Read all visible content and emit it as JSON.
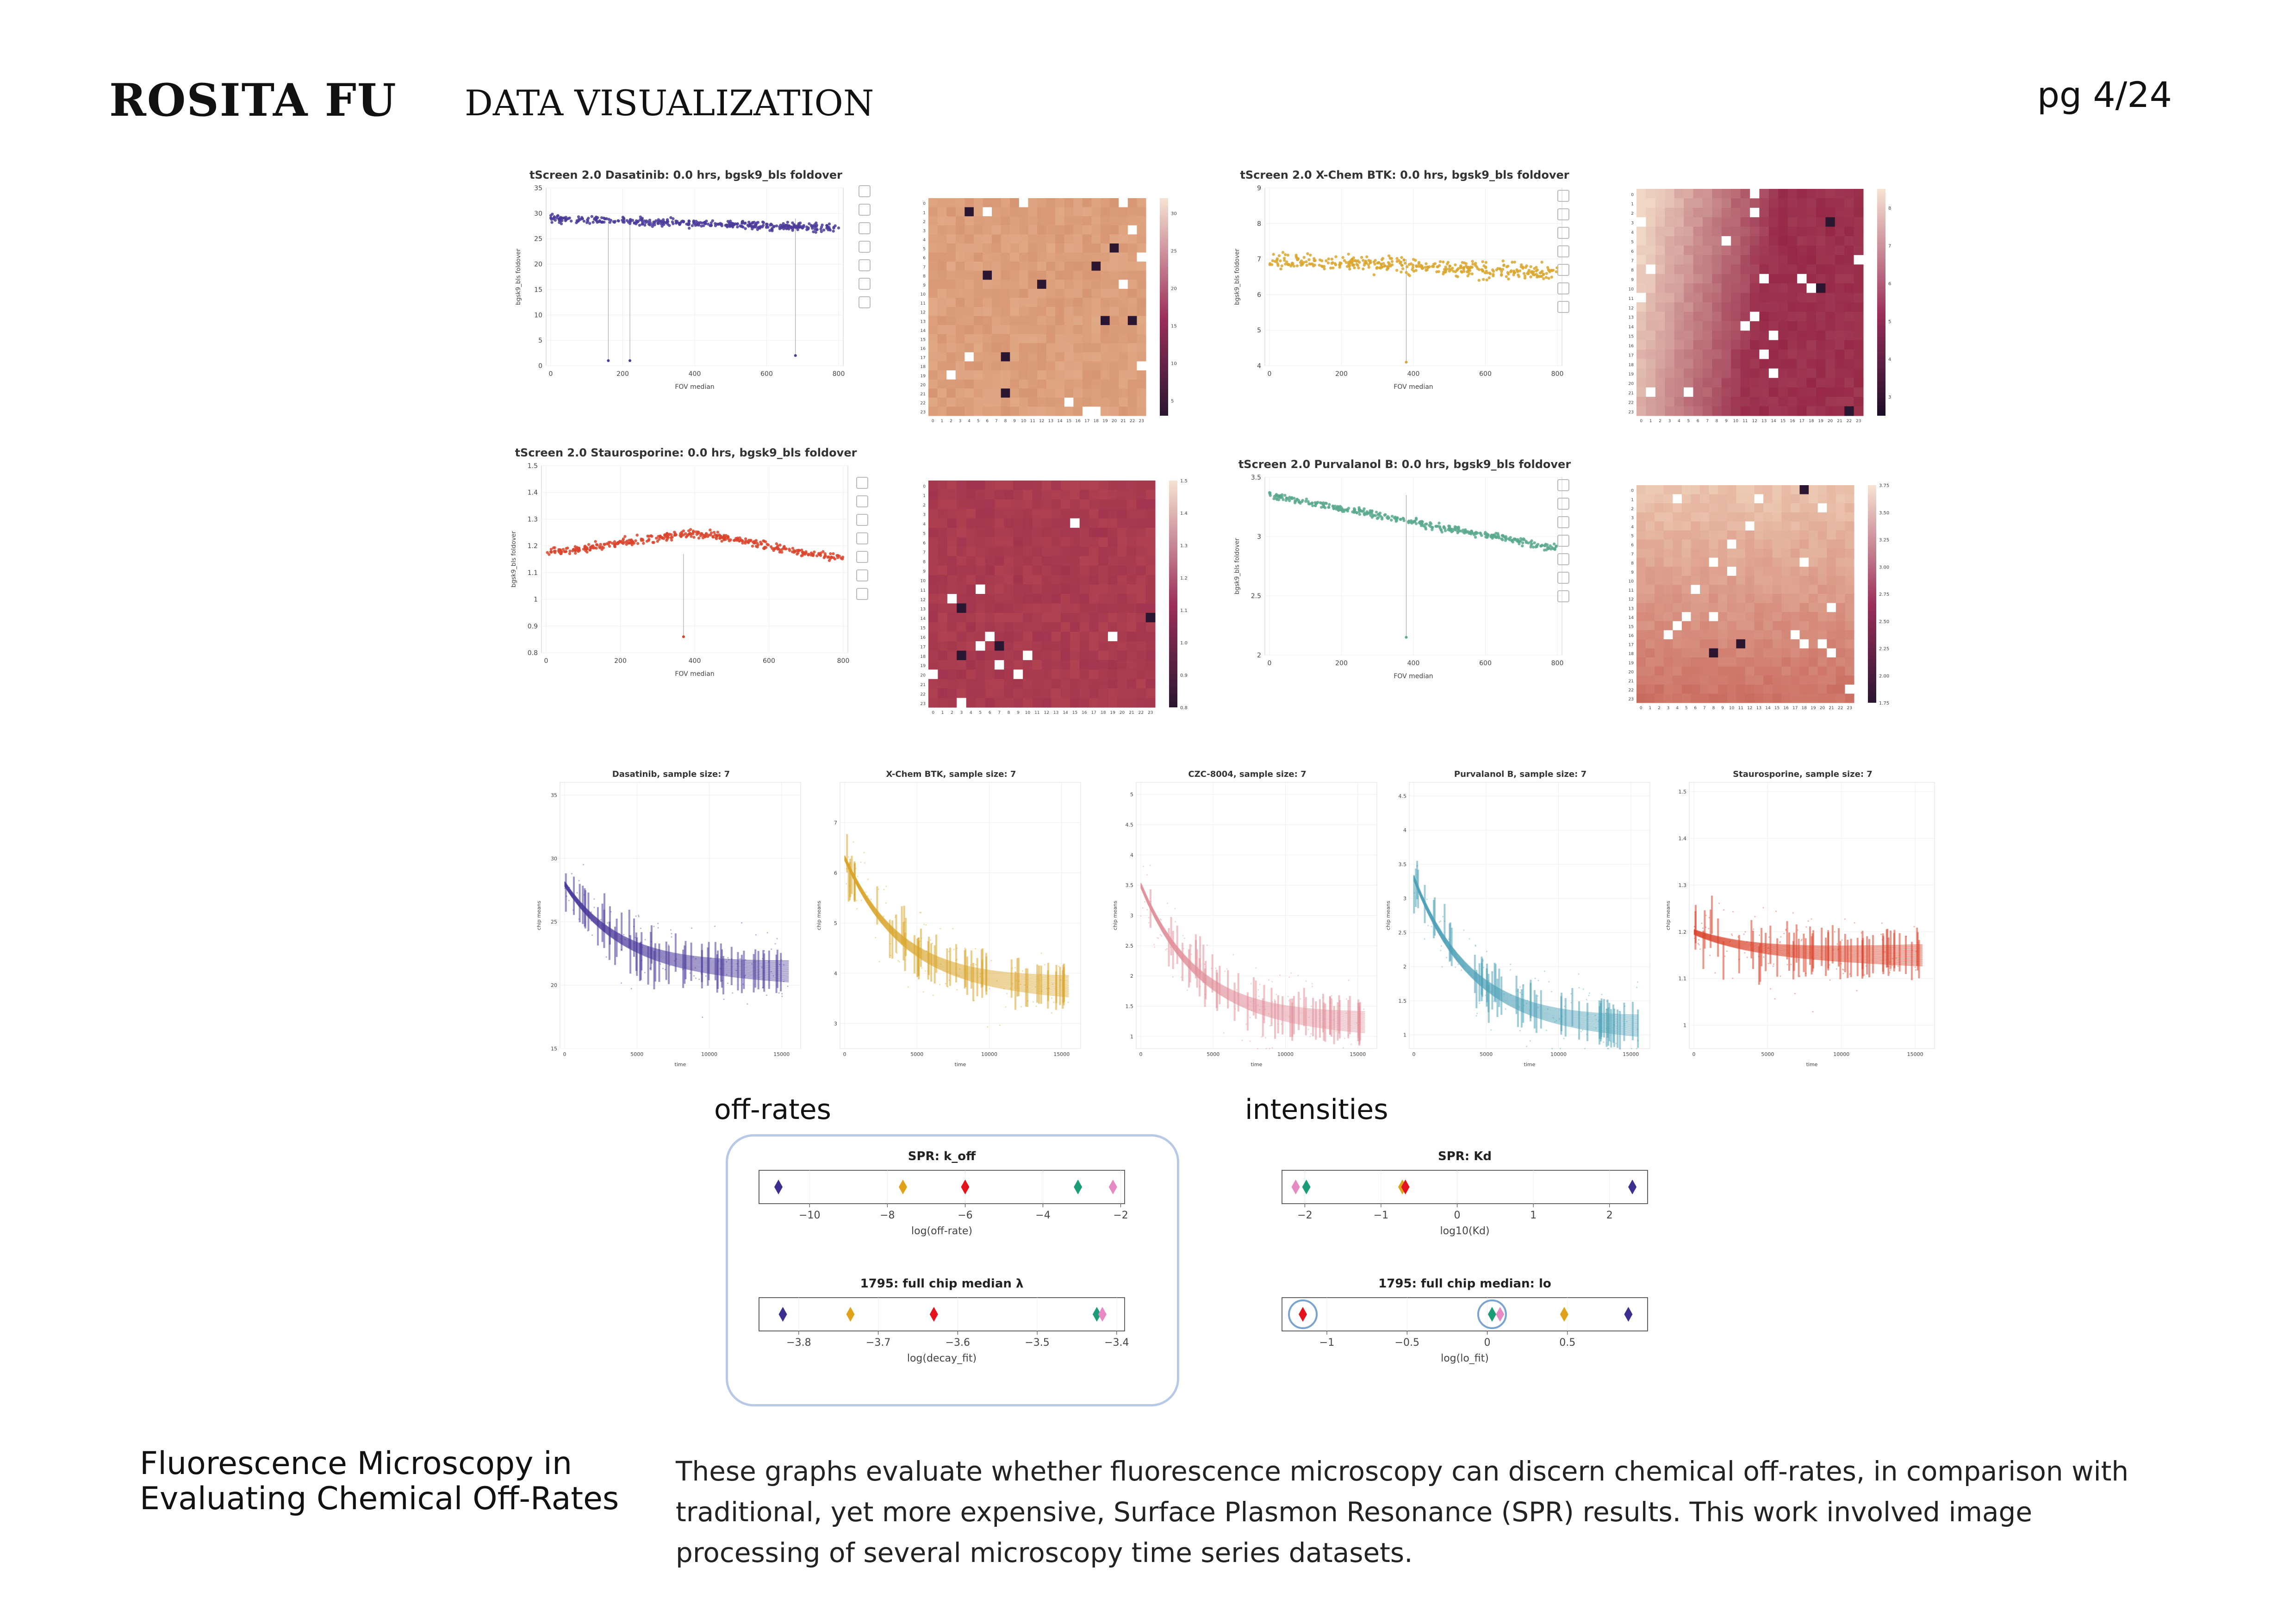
{
  "header": {
    "name": "ROSITA FU",
    "section": "DATA VISUALIZATION",
    "page": "pg 4/24"
  },
  "scatter_panels": [
    {
      "title": "tScreen 2.0 Dasatinib: 0.0 hrs, bgsk9_bls foldover",
      "color": "#4b3a9a",
      "xlabel": "FOV median",
      "ylabel": "bgsk9_bls foldover",
      "ylim": [
        0,
        35
      ],
      "yticks": [
        "0",
        "5",
        "10",
        "15",
        "20",
        "25",
        "30",
        "35"
      ],
      "xticks": [
        "0",
        "200",
        "400",
        "600",
        "800"
      ]
    },
    {
      "title": "tScreen 2.0 X-Chem BTK: 0.0 hrs, bgsk9_bls foldover",
      "color": "#d9a62e",
      "xlabel": "FOV median",
      "ylabel": "bgsk9_bls foldover",
      "ylim": [
        4,
        9
      ],
      "yticks": [
        "4",
        "5",
        "6",
        "7",
        "8",
        "9"
      ],
      "xticks": [
        "0",
        "200",
        "400",
        "600",
        "800"
      ]
    },
    {
      "title": "tScreen 2.0 Staurosporine: 0.0 hrs, bgsk9_bls foldover",
      "color": "#d9442b",
      "xlabel": "FOV median",
      "ylabel": "bgsk9_bls foldover",
      "ylim": [
        0.8,
        1.5
      ],
      "yticks": [
        "0.8",
        "0.9",
        "1",
        "1.1",
        "1.2",
        "1.3",
        "1.4",
        "1.5"
      ],
      "xticks": [
        "0",
        "200",
        "400",
        "600",
        "800"
      ]
    },
    {
      "title": "tScreen 2.0 Purvalanol B: 0.0 hrs, bgsk9_bls foldover",
      "color": "#5aa98e",
      "xlabel": "FOV median",
      "ylabel": "bgsk9_bls foldover",
      "ylim": [
        2,
        3.5
      ],
      "yticks": [
        "2",
        "2.5",
        "3",
        "3.5"
      ],
      "xticks": [
        "0",
        "200",
        "400",
        "600",
        "800"
      ]
    }
  ],
  "heatmaps": [
    {
      "colorbar_ticks": [
        "5",
        "10",
        "15",
        "20",
        "25",
        "30"
      ]
    },
    {
      "colorbar_ticks": [
        "3",
        "4",
        "5",
        "6",
        "7",
        "8"
      ]
    },
    {
      "colorbar_ticks": [
        "0.8",
        "0.9",
        "1.0",
        "1.1",
        "1.2",
        "1.3",
        "1.4",
        "1.5"
      ]
    },
    {
      "colorbar_ticks": [
        "1.75",
        "2.00",
        "2.25",
        "2.50",
        "2.75",
        "3.00",
        "3.25",
        "3.50",
        "3.75"
      ]
    }
  ],
  "decay_panels": [
    {
      "title": "Dasatinib, sample size: 7",
      "color": "#4b3a9a",
      "xlabel": "time",
      "ylabel": "chip means",
      "yticks": [
        "15",
        "20",
        "25",
        "30",
        "35"
      ],
      "xticks": [
        "0",
        "5000",
        "10000",
        "15000"
      ]
    },
    {
      "title": "X-Chem BTK, sample size: 7",
      "color": "#d9a62e",
      "xlabel": "time",
      "ylabel": "chip means",
      "yticks": [
        "3",
        "4",
        "5",
        "6",
        "7"
      ],
      "xticks": [
        "0",
        "5000",
        "10000",
        "15000"
      ]
    },
    {
      "title": "CZC-8004, sample size: 7",
      "color": "#e2919b",
      "xlabel": "time",
      "ylabel": "chip means",
      "yticks": [
        "1",
        "1.5",
        "2",
        "2.5",
        "3",
        "3.5",
        "4",
        "4.5",
        "5"
      ],
      "xticks": [
        "0",
        "5000",
        "10000",
        "15000"
      ]
    },
    {
      "title": "Purvalanol B, sample size: 7",
      "color": "#4fa2b8",
      "xlabel": "time",
      "ylabel": "chip means",
      "yticks": [
        "1",
        "1.5",
        "2",
        "2.5",
        "3",
        "3.5",
        "4",
        "4.5"
      ],
      "xticks": [
        "0",
        "5000",
        "10000",
        "15000"
      ]
    },
    {
      "title": "Staurosporine, sample size: 7",
      "color": "#d9442b",
      "xlabel": "time",
      "ylabel": "chip means",
      "yticks": [
        "1",
        "1.1",
        "1.2",
        "1.3",
        "1.4",
        "1.5"
      ],
      "xticks": [
        "0",
        "5000",
        "10000",
        "15000"
      ]
    }
  ],
  "labels": {
    "offrates": "off-rates",
    "intensities": "intensities"
  },
  "strips": [
    {
      "title": "SPR: k_off",
      "xlabel": "log(off-rate)",
      "xlim": [
        -11.3,
        -1.9
      ],
      "ticks": [
        -10,
        -8,
        -6,
        -4,
        -2
      ],
      "tick_labels": [
        "−10",
        "−8",
        "−6",
        "−4",
        "−2"
      ],
      "points": [
        {
          "x": -10.8,
          "color": "#3b2f8f"
        },
        {
          "x": -7.6,
          "color": "#e0a21b"
        },
        {
          "x": -6.0,
          "color": "#e3121b"
        },
        {
          "x": -3.1,
          "color": "#1b9e77"
        },
        {
          "x": -2.2,
          "color": "#e78ac3"
        }
      ]
    },
    {
      "title": "1795: full chip median λ",
      "xlabel": "log(decay_fit)",
      "xlim": [
        -3.85,
        -3.39
      ],
      "ticks": [
        -3.8,
        -3.7,
        -3.6,
        -3.5,
        -3.4
      ],
      "tick_labels": [
        "−3.8",
        "−3.7",
        "−3.6",
        "−3.5",
        "−3.4"
      ],
      "points": [
        {
          "x": -3.82,
          "color": "#3b2f8f"
        },
        {
          "x": -3.735,
          "color": "#e0a21b"
        },
        {
          "x": -3.63,
          "color": "#e3121b"
        },
        {
          "x": -3.425,
          "color": "#1b9e77"
        },
        {
          "x": -3.418,
          "color": "#e78ac3"
        }
      ]
    },
    {
      "title": "SPR: Kd",
      "xlabel": "log10(Kd)",
      "xlim": [
        -2.3,
        2.5
      ],
      "ticks": [
        -2,
        -1,
        0,
        1,
        2
      ],
      "tick_labels": [
        "−2",
        "−1",
        "0",
        "1",
        "2"
      ],
      "points": [
        {
          "x": -2.12,
          "color": "#e78ac3"
        },
        {
          "x": -1.98,
          "color": "#1b9e77"
        },
        {
          "x": -0.72,
          "color": "#e0a21b"
        },
        {
          "x": -0.68,
          "color": "#e3121b"
        },
        {
          "x": 2.3,
          "color": "#3b2f8f"
        }
      ]
    },
    {
      "title": "1795: full chip median: lo",
      "xlabel": "log(lo_fit)",
      "xlim": [
        -1.28,
        1.0
      ],
      "ticks": [
        -1,
        -0.5,
        0,
        0.5
      ],
      "tick_labels": [
        "−1",
        "−0.5",
        "0",
        "0.5"
      ],
      "points": [
        {
          "x": -1.15,
          "color": "#e3121b",
          "circled": true
        },
        {
          "x": 0.03,
          "color": "#1b9e77",
          "circled": true
        },
        {
          "x": 0.08,
          "color": "#e78ac3"
        },
        {
          "x": 0.48,
          "color": "#e0a21b"
        },
        {
          "x": 0.88,
          "color": "#3b2f8f"
        }
      ]
    }
  ],
  "caption": {
    "title_line1": "Fluorescence Microscopy in",
    "title_line2": "Evaluating Chemical Off-Rates",
    "body": "These graphs evaluate whether fluorescence microscopy can discern chemical off-rates, in comparison with traditional, yet more expensive, Surface Plasmon Resonance (SPR) results. This work involved image processing of several microscopy time series datasets."
  },
  "chart_data": [
    {
      "type": "scatter",
      "title": "tScreen 2.0 Dasatinib: 0.0 hrs, bgsk9_bls foldover",
      "xlabel": "FOV median",
      "ylabel": "bgsk9_bls foldover",
      "xlim": [
        0,
        800
      ],
      "ylim": [
        0,
        35
      ],
      "trend": [
        {
          "x": 0,
          "y": 29
        },
        {
          "x": 800,
          "y": 27
        }
      ],
      "outliers": [
        {
          "x": 160,
          "y": 1
        },
        {
          "x": 220,
          "y": 1
        },
        {
          "x": 680,
          "y": 2
        }
      ]
    },
    {
      "type": "scatter",
      "title": "tScreen 2.0 X-Chem BTK: 0.0 hrs, bgsk9_bls foldover",
      "xlabel": "FOV median",
      "ylabel": "bgsk9_bls foldover",
      "xlim": [
        0,
        800
      ],
      "ylim": [
        4,
        9
      ],
      "trend": [
        {
          "x": 0,
          "y": 7
        },
        {
          "x": 800,
          "y": 6.6
        }
      ],
      "outliers": [
        {
          "x": 380,
          "y": 4.1
        }
      ]
    },
    {
      "type": "scatter",
      "title": "tScreen 2.0 Staurosporine: 0.0 hrs, bgsk9_bls foldover",
      "xlabel": "FOV median",
      "ylabel": "bgsk9_bls foldover",
      "xlim": [
        0,
        800
      ],
      "ylim": [
        0.8,
        1.5
      ],
      "trend": [
        {
          "x": 0,
          "y": 1.17
        },
        {
          "x": 400,
          "y": 1.25
        },
        {
          "x": 800,
          "y": 1.15
        }
      ],
      "outliers": [
        {
          "x": 370,
          "y": 0.86
        }
      ]
    },
    {
      "type": "scatter",
      "title": "tScreen 2.0 Purvalanol B: 0.0 hrs, bgsk9_bls foldover",
      "xlabel": "FOV median",
      "ylabel": "bgsk9_bls foldover",
      "xlim": [
        0,
        800
      ],
      "ylim": [
        2,
        3.5
      ],
      "trend": [
        {
          "x": 0,
          "y": 3.35
        },
        {
          "x": 800,
          "y": 2.9
        }
      ],
      "outliers": [
        {
          "x": 380,
          "y": 2.15
        }
      ]
    },
    {
      "type": "heatmap",
      "title": "",
      "grid": [
        24,
        24
      ],
      "colorbar_range": [
        3,
        32
      ]
    },
    {
      "type": "heatmap",
      "title": "",
      "grid": [
        24,
        24
      ],
      "colorbar_range": [
        2.5,
        8.5
      ]
    },
    {
      "type": "heatmap",
      "title": "",
      "grid": [
        24,
        24
      ],
      "colorbar_range": [
        0.8,
        1.5
      ]
    },
    {
      "type": "heatmap",
      "title": "",
      "grid": [
        24,
        24
      ],
      "colorbar_range": [
        1.75,
        3.75
      ]
    },
    {
      "type": "line",
      "title": "Dasatinib, sample size: 7",
      "xlabel": "time",
      "ylabel": "chip means",
      "xlim": [
        0,
        16000
      ],
      "ylim": [
        15,
        36
      ],
      "fit": {
        "start": 28,
        "end": 21
      }
    },
    {
      "type": "line",
      "title": "X-Chem BTK, sample size: 7",
      "xlabel": "time",
      "ylabel": "chip means",
      "xlim": [
        0,
        16000
      ],
      "ylim": [
        2.5,
        7.8
      ],
      "fit": {
        "start": 6.3,
        "end": 3.7
      }
    },
    {
      "type": "line",
      "title": "CZC-8004, sample size: 7",
      "xlabel": "time",
      "ylabel": "chip means",
      "xlim": [
        0,
        16000
      ],
      "ylim": [
        0.8,
        5.2
      ],
      "fit": {
        "start": 3.5,
        "end": 1.2
      }
    },
    {
      "type": "line",
      "title": "Purvalanol B, sample size: 7",
      "xlabel": "time",
      "ylabel": "chip means",
      "xlim": [
        0,
        16000
      ],
      "ylim": [
        0.8,
        4.7
      ],
      "fit": {
        "start": 3.3,
        "end": 1.1
      }
    },
    {
      "type": "line",
      "title": "Staurosporine, sample size: 7",
      "xlabel": "time",
      "ylabel": "chip means",
      "xlim": [
        0,
        16000
      ],
      "ylim": [
        0.95,
        1.52
      ],
      "fit": {
        "start": 1.2,
        "end": 1.15
      }
    }
  ]
}
